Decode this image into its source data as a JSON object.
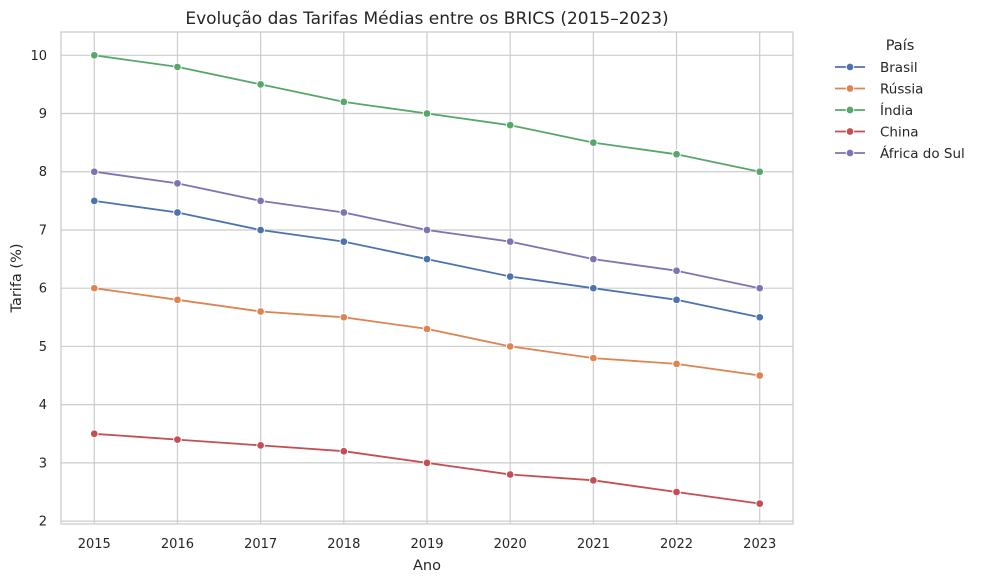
{
  "chart_data": {
    "type": "line",
    "title": "Evolução das Tarifas Médias entre os BRICS (2015–2023)",
    "xlabel": "Ano",
    "ylabel": "Tarifa (%)",
    "x": [
      2015,
      2016,
      2017,
      2018,
      2019,
      2020,
      2021,
      2022,
      2023
    ],
    "xlim": [
      2014.6,
      2023.4
    ],
    "ylim": [
      1.95,
      10.4
    ],
    "yticks": [
      2,
      3,
      4,
      5,
      6,
      7,
      8,
      9,
      10
    ],
    "grid": true,
    "legend": {
      "title": "País",
      "placement": "outside-top-right"
    },
    "series": [
      {
        "name": "Brasil",
        "color": "#4c72b0",
        "values": [
          7.5,
          7.3,
          7.0,
          6.8,
          6.5,
          6.2,
          6.0,
          5.8,
          5.5
        ]
      },
      {
        "name": "Rússia",
        "color": "#dd8452",
        "values": [
          6.0,
          5.8,
          5.6,
          5.5,
          5.3,
          5.0,
          4.8,
          4.7,
          4.5
        ]
      },
      {
        "name": "Índia",
        "color": "#55a868",
        "values": [
          10.0,
          9.8,
          9.5,
          9.2,
          9.0,
          8.8,
          8.5,
          8.3,
          8.0
        ]
      },
      {
        "name": "China",
        "color": "#c44e52",
        "values": [
          3.5,
          3.4,
          3.3,
          3.2,
          3.0,
          2.8,
          2.7,
          2.5,
          2.3
        ]
      },
      {
        "name": "África do Sul",
        "color": "#8172b3",
        "values": [
          8.0,
          7.8,
          7.5,
          7.3,
          7.0,
          6.8,
          6.5,
          6.3,
          6.0
        ]
      }
    ]
  }
}
